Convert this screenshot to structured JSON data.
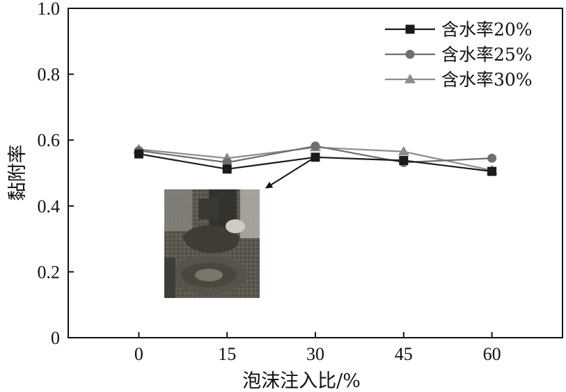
{
  "chart_data": {
    "type": "line",
    "xlabel": "泡沫注入比/%",
    "ylabel": "黏附率",
    "x": [
      0,
      15,
      30,
      45,
      60
    ],
    "xlim": [
      -12,
      72
    ],
    "ylim": [
      0,
      1.0
    ],
    "xticks": [
      "0",
      "15",
      "30",
      "45",
      "60"
    ],
    "yticks": [
      "0",
      "0.2",
      "0.4",
      "0.6",
      "0.8",
      "1.0"
    ],
    "legend_position": "top-right",
    "grid": false,
    "series": [
      {
        "name": "含水率20%",
        "marker": "square",
        "color": "#1a1a1a",
        "values": [
          0.558,
          0.512,
          0.548,
          0.538,
          0.505
        ]
      },
      {
        "name": "含水率25%",
        "marker": "circle",
        "color": "#6e6e6e",
        "values": [
          0.568,
          0.532,
          0.582,
          0.532,
          0.545
        ]
      },
      {
        "name": "含水率30%",
        "marker": "triangle",
        "color": "#8c8c8c",
        "values": [
          0.572,
          0.545,
          0.578,
          0.565,
          0.508
        ]
      }
    ],
    "annotation": {
      "type": "inset-photo",
      "points_to": {
        "x": 30,
        "series": "含水率20%"
      }
    }
  }
}
